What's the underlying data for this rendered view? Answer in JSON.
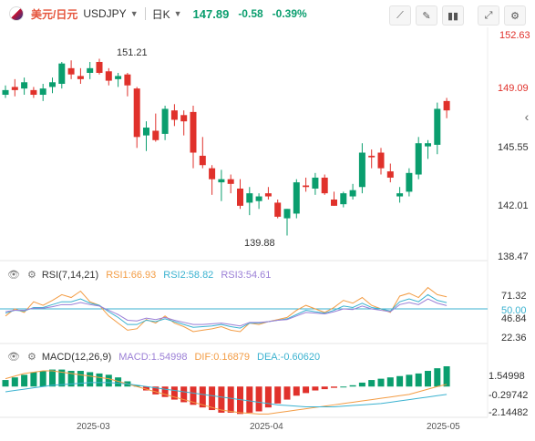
{
  "header": {
    "pair_cn": "美元/日元",
    "symbol": "USDJPY",
    "timeframe": "日K",
    "price": "147.89",
    "change": "-0.58",
    "change_pct": "-0.39%",
    "up_color": "#0a9e6e",
    "down_color": "#e0312b",
    "tools": [
      "line-chart-icon",
      "edit-icon",
      "candles-icon",
      "expand-icon",
      "settings-icon"
    ]
  },
  "main_axis": {
    "top": "152.63",
    "t2": "149.09",
    "t3": "145.55",
    "t4": "142.01",
    "bottom": "138.47"
  },
  "annotations": {
    "high": "151.21",
    "low": "139.88"
  },
  "rsi": {
    "label": "RSI(7,14,21)",
    "rsi1": "RSI1:66.93",
    "rsi2": "RSI2:58.82",
    "rsi3": "RSI3:54.61",
    "rsi1_color": "#f39c44",
    "rsi2_color": "#3bb2d0",
    "rsi3_color": "#9b7fd6",
    "ticks": {
      "a": "71.32",
      "b": "50.00",
      "c": "46.84",
      "d": "22.36"
    }
  },
  "macd": {
    "label": "MACD(12,26,9)",
    "macd": "MACD:1.54998",
    "dif": "DIF:0.16879",
    "dea": "DEA:-0.60620",
    "ticks": {
      "a": "1.54998",
      "b": "-0.29742",
      "c": "-2.14482"
    }
  },
  "x_axis": [
    "2025-03",
    "2025-04",
    "2025-05"
  ],
  "chart_data": {
    "type": "candlestick",
    "y_range": [
      138.47,
      152.63
    ],
    "candles": [
      [
        148.9,
        149.5,
        148.7,
        149.2
      ],
      [
        149.4,
        149.9,
        148.8,
        149.2
      ],
      [
        149.3,
        150.0,
        148.9,
        149.7
      ],
      [
        149.2,
        149.4,
        148.7,
        148.9
      ],
      [
        148.9,
        149.6,
        148.5,
        149.3
      ],
      [
        149.4,
        150.0,
        149.0,
        149.7
      ],
      [
        149.6,
        151.0,
        149.3,
        150.9
      ],
      [
        150.6,
        151.1,
        149.9,
        150.2
      ],
      [
        150.1,
        150.6,
        149.6,
        149.9
      ],
      [
        150.3,
        151.0,
        149.9,
        150.6
      ],
      [
        151.0,
        151.2,
        150.2,
        150.3
      ],
      [
        150.4,
        150.6,
        149.5,
        149.8
      ],
      [
        149.9,
        150.3,
        149.4,
        150.1
      ],
      [
        150.2,
        150.3,
        148.8,
        149.5
      ],
      [
        149.3,
        149.4,
        145.5,
        146.2
      ],
      [
        146.3,
        147.2,
        145.3,
        146.8
      ],
      [
        146.6,
        147.7,
        145.9,
        146.0
      ],
      [
        146.4,
        148.2,
        146.0,
        148.0
      ],
      [
        147.9,
        148.3,
        146.9,
        147.3
      ],
      [
        147.6,
        147.9,
        146.3,
        147.2
      ],
      [
        147.8,
        148.2,
        144.2,
        145.2
      ],
      [
        145.0,
        146.2,
        144.2,
        144.4
      ],
      [
        144.2,
        144.4,
        142.5,
        143.5
      ],
      [
        143.3,
        144.1,
        142.1,
        143.5
      ],
      [
        143.5,
        143.8,
        142.6,
        143.2
      ],
      [
        142.9,
        143.5,
        141.6,
        141.8
      ],
      [
        142.0,
        143.0,
        141.2,
        142.6
      ],
      [
        142.1,
        142.6,
        141.6,
        142.4
      ],
      [
        142.6,
        143.0,
        142.2,
        142.4
      ],
      [
        142.0,
        142.2,
        141.0,
        141.1
      ],
      [
        141.0,
        141.6,
        139.9,
        141.6
      ],
      [
        141.3,
        143.5,
        141.0,
        143.3
      ],
      [
        143.1,
        143.6,
        142.7,
        143.0
      ],
      [
        142.9,
        143.9,
        142.5,
        143.6
      ],
      [
        143.6,
        143.8,
        142.5,
        142.6
      ],
      [
        142.2,
        142.7,
        141.8,
        141.8
      ],
      [
        141.9,
        142.7,
        141.7,
        142.6
      ],
      [
        142.4,
        143.2,
        142.2,
        142.8
      ],
      [
        143.0,
        145.8,
        142.6,
        145.2
      ],
      [
        145.0,
        145.4,
        144.2,
        144.9
      ],
      [
        145.2,
        145.5,
        143.8,
        144.2
      ],
      [
        144.0,
        144.5,
        143.3,
        143.6
      ],
      [
        142.4,
        143.0,
        142.0,
        142.6
      ],
      [
        142.7,
        144.2,
        142.4,
        143.9
      ],
      [
        143.8,
        146.2,
        143.5,
        145.8
      ],
      [
        145.6,
        146.0,
        144.8,
        145.8
      ],
      [
        145.7,
        148.4,
        145.1,
        148.0
      ],
      [
        148.5,
        148.7,
        147.4,
        147.9
      ]
    ],
    "rsi1": [
      40,
      50,
      45,
      60,
      55,
      62,
      70,
      66,
      75,
      60,
      55,
      40,
      30,
      20,
      22,
      35,
      30,
      40,
      30,
      25,
      18,
      20,
      22,
      25,
      20,
      18,
      30,
      28,
      32,
      35,
      38,
      48,
      55,
      50,
      45,
      52,
      62,
      58,
      66,
      55,
      50,
      45,
      68,
      72,
      66,
      80,
      70,
      66.93
    ],
    "rsi2": [
      44,
      48,
      47,
      52,
      52,
      56,
      60,
      60,
      64,
      58,
      55,
      46,
      38,
      28,
      28,
      34,
      32,
      36,
      32,
      28,
      24,
      25,
      26,
      28,
      25,
      23,
      30,
      30,
      32,
      34,
      36,
      42,
      48,
      46,
      44,
      48,
      54,
      52,
      58,
      52,
      50,
      47,
      60,
      64,
      60,
      70,
      62,
      58.82
    ],
    "rsi3": [
      46,
      48,
      48,
      51,
      51,
      53,
      56,
      56,
      59,
      56,
      54,
      48,
      42,
      34,
      33,
      37,
      35,
      38,
      34,
      31,
      28,
      28,
      29,
      30,
      28,
      26,
      31,
      31,
      32,
      34,
      35,
      40,
      45,
      44,
      43,
      46,
      50,
      49,
      54,
      50,
      48,
      46,
      56,
      59,
      56,
      64,
      58,
      54.61
    ],
    "macd_hist": [
      0.5,
      0.7,
      0.9,
      1.1,
      1.2,
      1.3,
      1.3,
      1.2,
      1.2,
      1.1,
      1.0,
      0.9,
      0.7,
      0.4,
      0.1,
      -0.3,
      -0.6,
      -0.8,
      -1.0,
      -1.2,
      -1.4,
      -1.6,
      -1.8,
      -2.0,
      -2.0,
      -2.1,
      -2.0,
      -1.9,
      -1.6,
      -1.3,
      -1.0,
      -0.7,
      -0.5,
      -0.3,
      -0.2,
      -0.1,
      0.0,
      0.1,
      0.3,
      0.5,
      0.6,
      0.7,
      0.8,
      0.9,
      1.0,
      1.2,
      1.4,
      1.55
    ],
    "dif": [
      0.6,
      0.8,
      1.0,
      1.1,
      1.2,
      1.2,
      1.1,
      1.0,
      0.9,
      0.8,
      0.7,
      0.6,
      0.4,
      0.2,
      0.0,
      -0.2,
      -0.4,
      -0.6,
      -0.8,
      -1.0,
      -1.2,
      -1.4,
      -1.6,
      -1.8,
      -1.9,
      -2.0,
      -2.05,
      -2.1,
      -2.1,
      -2.0,
      -1.9,
      -1.8,
      -1.7,
      -1.6,
      -1.5,
      -1.4,
      -1.3,
      -1.2,
      -1.1,
      -1.0,
      -0.9,
      -0.8,
      -0.7,
      -0.6,
      -0.4,
      -0.2,
      0.0,
      0.16879
    ],
    "dea": [
      -0.4,
      -0.3,
      -0.2,
      -0.1,
      0.0,
      0.1,
      0.15,
      0.2,
      0.25,
      0.3,
      0.3,
      0.3,
      0.25,
      0.2,
      0.1,
      0.0,
      -0.1,
      -0.2,
      -0.3,
      -0.4,
      -0.5,
      -0.6,
      -0.7,
      -0.8,
      -0.9,
      -1.0,
      -1.1,
      -1.2,
      -1.3,
      -1.4,
      -1.45,
      -1.5,
      -1.55,
      -1.55,
      -1.55,
      -1.55,
      -1.5,
      -1.45,
      -1.4,
      -1.35,
      -1.3,
      -1.2,
      -1.1,
      -1.0,
      -0.9,
      -0.8,
      -0.7,
      -0.6062
    ],
    "macd_range": [
      -2.14482,
      1.54998
    ]
  }
}
